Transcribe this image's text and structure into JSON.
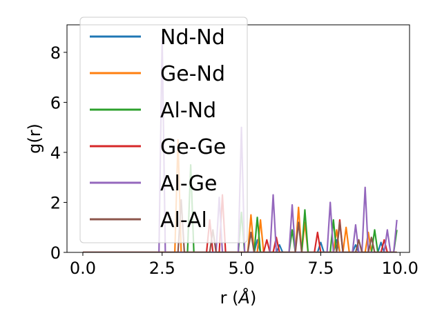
{
  "chart_data": {
    "type": "line",
    "xlabel": "r (",
    "xlabel_unit": "Å",
    "xlabel_close": ")",
    "ylabel": "g(r)",
    "xlim": [
      -0.5,
      10.3
    ],
    "ylim": [
      0,
      9.1
    ],
    "x_ticks": [
      0.0,
      2.5,
      5.0,
      7.5,
      10.0
    ],
    "x_tick_labels": [
      "0.0",
      "2.5",
      "5.0",
      "7.5",
      "10.0"
    ],
    "y_ticks": [
      0,
      2,
      4,
      6,
      8
    ],
    "y_tick_labels": [
      "0",
      "2",
      "4",
      "6",
      "8"
    ],
    "grid": false,
    "legend_position": "top-left",
    "series": [
      {
        "name": "Nd-Nd",
        "color": "#1f77b4",
        "peaks": [
          [
            5.5,
            0.5
          ],
          [
            6.2,
            0.3
          ],
          [
            7.5,
            0.4
          ],
          [
            8.0,
            0.5
          ],
          [
            8.6,
            0.3
          ],
          [
            9.4,
            0.4
          ]
        ]
      },
      {
        "name": "Ge-Nd",
        "color": "#ff7f0e",
        "peaks": [
          [
            3.0,
            4.5
          ],
          [
            5.3,
            1.5
          ],
          [
            5.6,
            1.3
          ],
          [
            6.8,
            1.8
          ],
          [
            7.0,
            1.2
          ],
          [
            8.0,
            0.9
          ],
          [
            8.3,
            1.0
          ],
          [
            9.0,
            0.8
          ]
        ]
      },
      {
        "name": "Al-Nd",
        "color": "#2ca02c",
        "peaks": [
          [
            3.4,
            3.5
          ],
          [
            5.0,
            1.6
          ],
          [
            5.5,
            1.4
          ],
          [
            6.6,
            0.9
          ],
          [
            7.0,
            1.7
          ],
          [
            7.9,
            1.3
          ],
          [
            9.2,
            0.9
          ],
          [
            9.9,
            0.9
          ]
        ]
      },
      {
        "name": "Ge-Ge",
        "color": "#d62728",
        "peaks": [
          [
            4.0,
            1.3
          ],
          [
            4.4,
            2.3
          ],
          [
            5.8,
            0.5
          ],
          [
            6.1,
            0.6
          ],
          [
            7.4,
            0.8
          ],
          [
            8.1,
            1.3
          ],
          [
            9.5,
            0.5
          ]
        ]
      },
      {
        "name": "Al-Ge",
        "color": "#9467bd",
        "peaks": [
          [
            2.5,
            8.6
          ],
          [
            4.3,
            2.2
          ],
          [
            5.0,
            5.0
          ],
          [
            6.0,
            2.3
          ],
          [
            6.6,
            1.9
          ],
          [
            7.8,
            2.0
          ],
          [
            8.6,
            1.1
          ],
          [
            8.9,
            2.6
          ],
          [
            9.6,
            0.9
          ],
          [
            9.9,
            1.3
          ]
        ]
      },
      {
        "name": "Al-Al",
        "color": "#8c564b",
        "peaks": [
          [
            3.1,
            2.1
          ],
          [
            4.1,
            0.9
          ],
          [
            5.3,
            0.8
          ],
          [
            6.8,
            1.2
          ],
          [
            8.1,
            1.2
          ],
          [
            8.7,
            0.5
          ],
          [
            9.1,
            0.6
          ]
        ]
      }
    ]
  }
}
